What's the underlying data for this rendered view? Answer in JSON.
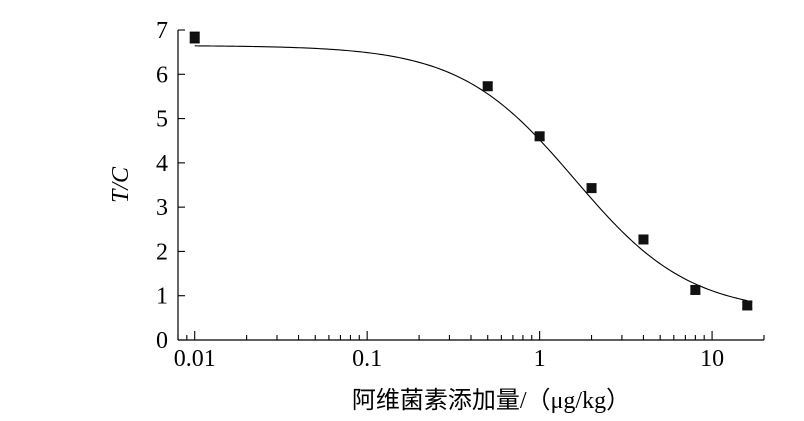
{
  "chart_data": {
    "type": "scatter",
    "title": "",
    "xlabel": "阿维菌素添加量/（μg/kg）",
    "ylabel": "T/C",
    "x_scale": "log",
    "xlim": [
      0.008,
      20
    ],
    "ylim": [
      0,
      7
    ],
    "x_ticks": [
      0.01,
      0.1,
      1,
      10
    ],
    "x_tick_labels": [
      "0.01",
      "0.1",
      "1",
      "10"
    ],
    "y_ticks": [
      0,
      1,
      2,
      3,
      4,
      5,
      6,
      7
    ],
    "y_tick_labels": [
      "0",
      "1",
      "2",
      "3",
      "4",
      "5",
      "6",
      "7"
    ],
    "grid": false,
    "series": [
      {
        "x": [
          0.01,
          0.5,
          1,
          2,
          4,
          8,
          16
        ],
        "y": [
          6.83,
          5.73,
          4.6,
          3.43,
          2.27,
          1.13,
          0.78
        ],
        "error": [
          0.12,
          0.08,
          0.08,
          0.08,
          0.08,
          0.08,
          0.08
        ],
        "marker": "square",
        "color": "#111111"
      }
    ],
    "fit_curve": {
      "type": "four-parameter logistic",
      "top": 6.65,
      "bottom": 0.6,
      "ec50": 1.6,
      "hill": 1.3
    }
  }
}
